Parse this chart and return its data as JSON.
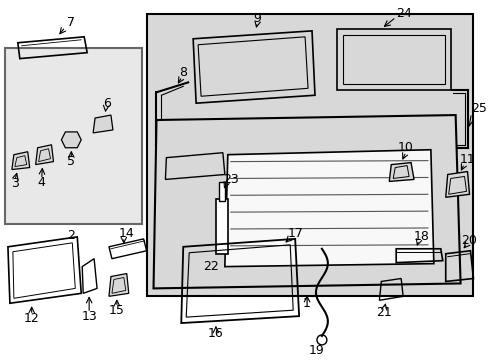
{
  "bg_color": "#ffffff",
  "lc": "#000000",
  "box_bg": "#e0e0e0",
  "fig_w": 4.89,
  "fig_h": 3.6,
  "dpi": 100
}
